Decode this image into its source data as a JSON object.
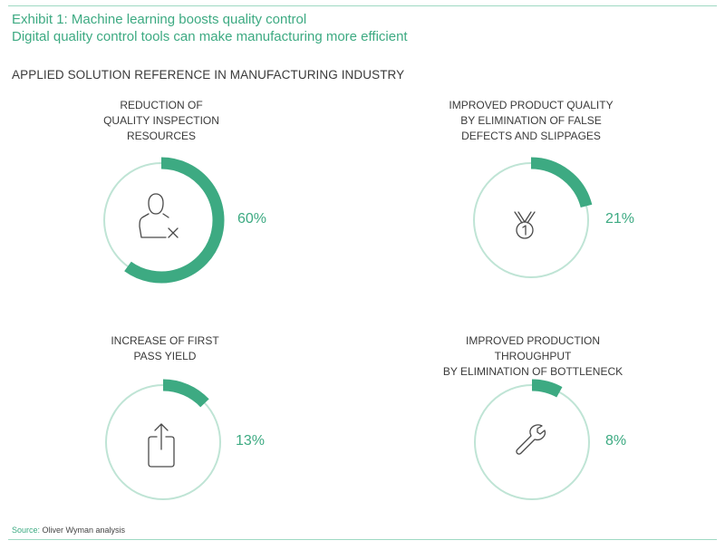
{
  "title": {
    "line1": "Exhibit 1: Machine learning boosts quality control",
    "line2": "Digital quality control tools can make manufacturing more efficient"
  },
  "section_heading": "APPLIED SOLUTION REFERENCE IN MANUFACTURING INDUSTRY",
  "source": {
    "label": "Source:",
    "text": " Oliver Wyman analysis"
  },
  "colors": {
    "accent": "#3daa82",
    "ring": "#bfe4d5",
    "text": "#3a3a3a"
  },
  "chart_data": [
    {
      "type": "pie",
      "title": "REDUCTION OF\nQUALITY INSPECTION\nRESOURCES",
      "values": [
        60
      ],
      "unit": "%",
      "label": "60%",
      "icon": "user-remove-icon"
    },
    {
      "type": "pie",
      "title": "IMPROVED PRODUCT QUALITY\nBY ELIMINATION OF FALSE\nDEFECTS AND SLIPPAGES",
      "values": [
        21
      ],
      "unit": "%",
      "label": "21%",
      "icon": "medal-icon"
    },
    {
      "type": "pie",
      "title": "INCREASE OF FIRST\nPASS YIELD",
      "values": [
        13
      ],
      "unit": "%",
      "label": "13%",
      "icon": "share-upload-icon"
    },
    {
      "type": "pie",
      "title": "IMPROVED PRODUCTION THROUGHPUT\nBY ELIMINATION OF BOTTLENECK",
      "values": [
        8
      ],
      "unit": "%",
      "label": "8%",
      "icon": "wrench-icon"
    }
  ]
}
